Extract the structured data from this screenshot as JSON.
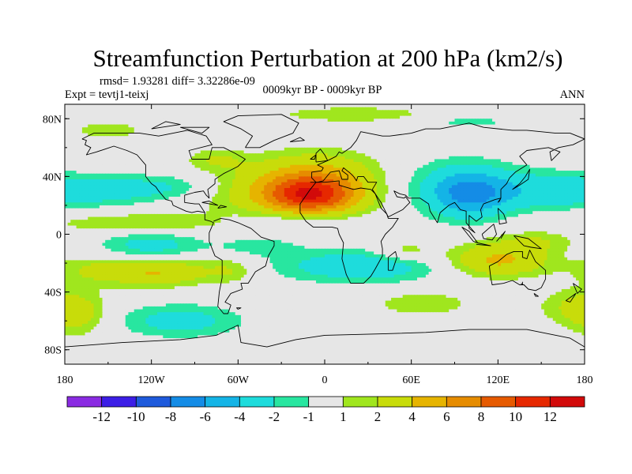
{
  "chart_data": {
    "type": "filled-contour-map",
    "title": "Streamfunction Perturbation at 200 hPa (km2/s)",
    "stats_label": "rmsd= 1.93281 diff= 3.32286e-09",
    "experiment_label": "Expt = tevtj1-teixj",
    "period_label": "0009kyr BP - 0009kyr BP",
    "season_label": "ANN",
    "xlim": [
      -180,
      180
    ],
    "ylim": [
      -90,
      90
    ],
    "x_ticks": [
      {
        "value": -180,
        "label": "180"
      },
      {
        "value": -120,
        "label": "120W"
      },
      {
        "value": -60,
        "label": "60W"
      },
      {
        "value": 0,
        "label": "0"
      },
      {
        "value": 60,
        "label": "60E"
      },
      {
        "value": 120,
        "label": "120E"
      },
      {
        "value": 180,
        "label": "180"
      }
    ],
    "y_ticks": [
      {
        "value": 80,
        "label": "80N"
      },
      {
        "value": 40,
        "label": "40N"
      },
      {
        "value": 0,
        "label": "0"
      },
      {
        "value": -40,
        "label": "40S"
      },
      {
        "value": -80,
        "label": "80S"
      }
    ],
    "levels": [
      -12,
      -10,
      -8,
      -6,
      -4,
      -2,
      -1,
      1,
      2,
      4,
      6,
      8,
      10,
      12
    ],
    "level_labels": [
      "-12",
      "-10",
      "-8",
      "-6",
      "-4",
      "-2",
      "-1",
      "1",
      "2",
      "4",
      "6",
      "8",
      "10",
      "12"
    ],
    "colors": [
      "#8a2be2",
      "#3c1ee6",
      "#1e5adc",
      "#148ce6",
      "#14b4e6",
      "#1edcdc",
      "#28e6a0",
      "#e6e6e6",
      "#a0e61e",
      "#c8dc0a",
      "#e6b400",
      "#e68c00",
      "#e65a00",
      "#e62800",
      "#d20a0a"
    ],
    "anomalies": [
      {
        "lon": -10,
        "lat": 27,
        "amp": 9.0,
        "slon": 22,
        "slat": 9
      },
      {
        "lon": -5,
        "lat": 45,
        "amp": 2.5,
        "slon": 30,
        "slat": 10
      },
      {
        "lon": -15,
        "lat": 30,
        "amp": 3.5,
        "slon": 50,
        "slat": 13
      },
      {
        "lon": 100,
        "lat": 28,
        "amp": -5.0,
        "slon": 18,
        "slat": 11
      },
      {
        "lon": 85,
        "lat": 32,
        "amp": -2.5,
        "slon": 40,
        "slat": 14
      },
      {
        "lon": 150,
        "lat": 30,
        "amp": -2.2,
        "slon": 30,
        "slat": 9
      },
      {
        "lon": -155,
        "lat": 30,
        "amp": -2.5,
        "slon": 35,
        "slat": 8
      },
      {
        "lon": -105,
        "lat": 33,
        "amp": -1.8,
        "slon": 25,
        "slat": 6
      },
      {
        "lon": -75,
        "lat": 52,
        "amp": 1.8,
        "slon": 14,
        "slat": 5
      },
      {
        "lon": -130,
        "lat": 8,
        "amp": 2.0,
        "slon": 45,
        "slat": 5
      },
      {
        "lon": -20,
        "lat": 10,
        "amp": -1.6,
        "slon": 30,
        "slat": 5
      },
      {
        "lon": 20,
        "lat": 83,
        "amp": 1.8,
        "slon": 40,
        "slat": 4
      },
      {
        "lon": 100,
        "lat": 78,
        "amp": -1.4,
        "slon": 25,
        "slat": 3
      },
      {
        "lon": -150,
        "lat": 72,
        "amp": 1.5,
        "slon": 20,
        "slat": 5
      },
      {
        "lon": -120,
        "lat": -8,
        "amp": -2.8,
        "slon": 25,
        "slat": 7
      },
      {
        "lon": -45,
        "lat": -8,
        "amp": -1.5,
        "slon": 20,
        "slat": 5
      },
      {
        "lon": -115,
        "lat": -26,
        "amp": 4.0,
        "slon": 25,
        "slat": 7
      },
      {
        "lon": -160,
        "lat": -25,
        "amp": 1.8,
        "slon": 20,
        "slat": 7
      },
      {
        "lon": -65,
        "lat": -25,
        "amp": 1.8,
        "slon": 12,
        "slat": 6
      },
      {
        "lon": 25,
        "lat": -22,
        "amp": -3.5,
        "slon": 40,
        "slat": 8
      },
      {
        "lon": 55,
        "lat": -12,
        "amp": 2.0,
        "slon": 15,
        "slat": 5
      },
      {
        "lon": 120,
        "lat": -18,
        "amp": 4.5,
        "slon": 25,
        "slat": 8
      },
      {
        "lon": 145,
        "lat": -5,
        "amp": 1.8,
        "slon": 20,
        "slat": 5
      },
      {
        "lon": -100,
        "lat": -60,
        "amp": -2.8,
        "slon": 30,
        "slat": 8
      },
      {
        "lon": -172,
        "lat": -57,
        "amp": 2.2,
        "slon": 14,
        "slat": 10
      },
      {
        "lon": 68,
        "lat": -48,
        "amp": 1.8,
        "slon": 25,
        "slat": 6
      },
      {
        "lon": 175,
        "lat": -50,
        "amp": 2.0,
        "slon": 20,
        "slat": 9
      }
    ]
  },
  "coastlines": [
    [
      [
        -168,
        66
      ],
      [
        -160,
        70
      ],
      [
        -140,
        70
      ],
      [
        -128,
        70
      ],
      [
        -115,
        68
      ],
      [
        -95,
        72
      ],
      [
        -82,
        68
      ],
      [
        -78,
        62
      ],
      [
        -94,
        58
      ],
      [
        -92,
        52
      ],
      [
        -80,
        52
      ],
      [
        -78,
        60
      ],
      [
        -70,
        60
      ],
      [
        -62,
        56
      ],
      [
        -55,
        52
      ],
      [
        -60,
        47
      ],
      [
        -66,
        44
      ],
      [
        -70,
        42
      ],
      [
        -76,
        38
      ],
      [
        -76,
        35
      ],
      [
        -81,
        31
      ],
      [
        -80,
        25
      ],
      [
        -82,
        27
      ],
      [
        -84,
        30
      ],
      [
        -90,
        29
      ],
      [
        -97,
        27
      ],
      [
        -97,
        22
      ],
      [
        -90,
        21
      ],
      [
        -87,
        21
      ],
      [
        -83,
        15
      ],
      [
        -83,
        10
      ],
      [
        -79,
        9
      ],
      [
        -77,
        8
      ],
      [
        -80,
        1
      ],
      [
        -80,
        -5
      ],
      [
        -76,
        -15
      ],
      [
        -71,
        -18
      ],
      [
        -71,
        -30
      ],
      [
        -73,
        -40
      ],
      [
        -74,
        -50
      ],
      [
        -70,
        -55
      ],
      [
        -67,
        -55
      ],
      [
        -65,
        -49
      ],
      [
        -69,
        -47
      ],
      [
        -65,
        -41
      ],
      [
        -57,
        -38
      ],
      [
        -58,
        -34
      ],
      [
        -53,
        -34
      ],
      [
        -48,
        -26
      ],
      [
        -41,
        -22
      ],
      [
        -39,
        -15
      ],
      [
        -35,
        -8
      ],
      [
        -35,
        -5
      ],
      [
        -44,
        -2
      ],
      [
        -51,
        4
      ],
      [
        -60,
        8
      ],
      [
        -66,
        10
      ],
      [
        -72,
        11
      ],
      [
        -77,
        9
      ]
    ],
    [
      [
        -83,
        15
      ],
      [
        -88,
        16
      ],
      [
        -92,
        15
      ],
      [
        -96,
        16
      ],
      [
        -105,
        20
      ],
      [
        -106,
        23
      ],
      [
        -110,
        24
      ],
      [
        -115,
        30
      ],
      [
        -117,
        33
      ],
      [
        -120,
        35
      ],
      [
        -124,
        40
      ],
      [
        -124,
        48
      ],
      [
        -130,
        55
      ],
      [
        -137,
        58
      ],
      [
        -146,
        61
      ],
      [
        -152,
        59
      ],
      [
        -158,
        57
      ],
      [
        -165,
        55
      ],
      [
        -162,
        60
      ],
      [
        -166,
        62
      ],
      [
        -165,
        65
      ],
      [
        -168,
        66
      ]
    ],
    [
      [
        -55,
        60
      ],
      [
        -45,
        60
      ],
      [
        -35,
        65
      ],
      [
        -22,
        70
      ],
      [
        -18,
        77
      ],
      [
        -30,
        83
      ],
      [
        -60,
        82
      ],
      [
        -70,
        78
      ],
      [
        -58,
        73
      ],
      [
        -50,
        68
      ],
      [
        -55,
        60
      ]
    ],
    [
      [
        -10,
        36
      ],
      [
        -6,
        36
      ],
      [
        -9,
        39
      ],
      [
        -9,
        43
      ],
      [
        -2,
        44
      ],
      [
        -1,
        46
      ],
      [
        -5,
        48
      ],
      [
        2,
        51
      ],
      [
        8,
        54
      ],
      [
        10,
        57
      ],
      [
        12,
        56
      ],
      [
        18,
        60
      ],
      [
        22,
        65
      ],
      [
        25,
        71
      ],
      [
        40,
        68
      ],
      [
        45,
        68
      ],
      [
        60,
        70
      ],
      [
        70,
        73
      ],
      [
        80,
        73
      ],
      [
        100,
        77
      ],
      [
        110,
        74
      ],
      [
        130,
        72
      ],
      [
        140,
        72
      ],
      [
        160,
        70
      ],
      [
        170,
        70
      ],
      [
        180,
        66
      ],
      [
        172,
        62
      ],
      [
        162,
        60
      ],
      [
        156,
        57
      ],
      [
        157,
        51
      ],
      [
        163,
        57
      ],
      [
        155,
        60
      ],
      [
        140,
        58
      ],
      [
        135,
        54
      ],
      [
        140,
        48
      ],
      [
        132,
        43
      ],
      [
        128,
        39
      ],
      [
        126,
        35
      ],
      [
        122,
        31
      ],
      [
        122,
        25
      ],
      [
        118,
        24
      ],
      [
        110,
        21
      ],
      [
        108,
        17
      ],
      [
        109,
        12
      ],
      [
        105,
        9
      ],
      [
        100,
        13
      ],
      [
        100,
        4
      ],
      [
        104,
        1
      ],
      [
        98,
        8
      ],
      [
        98,
        16
      ],
      [
        94,
        17
      ],
      [
        90,
        22
      ],
      [
        86,
        20
      ],
      [
        80,
        15
      ],
      [
        78,
        8
      ],
      [
        73,
        16
      ],
      [
        72,
        21
      ],
      [
        66,
        25
      ],
      [
        58,
        25
      ],
      [
        56,
        27
      ],
      [
        52,
        28
      ],
      [
        48,
        30
      ],
      [
        50,
        26
      ],
      [
        55,
        25
      ],
      [
        56,
        26
      ],
      [
        59,
        22
      ],
      [
        54,
        17
      ],
      [
        44,
        12
      ],
      [
        43,
        14
      ],
      [
        39,
        22
      ],
      [
        35,
        28
      ],
      [
        33,
        31
      ],
      [
        36,
        36
      ],
      [
        30,
        36
      ],
      [
        27,
        40
      ],
      [
        23,
        40
      ],
      [
        22,
        37
      ],
      [
        20,
        40
      ],
      [
        18,
        42
      ],
      [
        13,
        46
      ],
      [
        12,
        44
      ],
      [
        16,
        41
      ],
      [
        16,
        38
      ],
      [
        12,
        38
      ],
      [
        10,
        44
      ],
      [
        4,
        43
      ],
      [
        -1,
        37
      ],
      [
        -5,
        36
      ],
      [
        -10,
        36
      ]
    ],
    [
      [
        -6,
        36
      ],
      [
        -10,
        31
      ],
      [
        -17,
        21
      ],
      [
        -17,
        15
      ],
      [
        -13,
        9
      ],
      [
        -8,
        5
      ],
      [
        -2,
        5
      ],
      [
        5,
        5
      ],
      [
        9,
        4
      ],
      [
        10,
        0
      ],
      [
        13,
        -6
      ],
      [
        12,
        -17
      ],
      [
        15,
        -28
      ],
      [
        18,
        -34
      ],
      [
        22,
        -34
      ],
      [
        27,
        -34
      ],
      [
        32,
        -29
      ],
      [
        35,
        -24
      ],
      [
        40,
        -15
      ],
      [
        40,
        -10
      ],
      [
        39,
        -5
      ],
      [
        42,
        0
      ],
      [
        47,
        5
      ],
      [
        51,
        11
      ],
      [
        44,
        11
      ],
      [
        43,
        14
      ],
      [
        39,
        18
      ],
      [
        35,
        28
      ],
      [
        32,
        31
      ],
      [
        25,
        32
      ],
      [
        20,
        31
      ],
      [
        10,
        34
      ],
      [
        10,
        37
      ],
      [
        0,
        36
      ],
      [
        -6,
        36
      ]
    ],
    [
      [
        114,
        -22
      ],
      [
        120,
        -19
      ],
      [
        126,
        -14
      ],
      [
        131,
        -12
      ],
      [
        137,
        -12
      ],
      [
        137,
        -16
      ],
      [
        140,
        -17
      ],
      [
        142,
        -11
      ],
      [
        146,
        -19
      ],
      [
        153,
        -25
      ],
      [
        153,
        -31
      ],
      [
        150,
        -37
      ],
      [
        146,
        -39
      ],
      [
        141,
        -38
      ],
      [
        138,
        -35
      ],
      [
        135,
        -35
      ],
      [
        130,
        -32
      ],
      [
        124,
        -34
      ],
      [
        116,
        -35
      ],
      [
        115,
        -30
      ],
      [
        114,
        -22
      ]
    ],
    [
      [
        -180,
        -78
      ],
      [
        -140,
        -75
      ],
      [
        -100,
        -73
      ],
      [
        -75,
        -70
      ],
      [
        -60,
        -63
      ],
      [
        -58,
        -75
      ],
      [
        -40,
        -78
      ],
      [
        -20,
        -73
      ],
      [
        0,
        -70
      ],
      [
        40,
        -69
      ],
      [
        70,
        -68
      ],
      [
        100,
        -66
      ],
      [
        140,
        -66
      ],
      [
        170,
        -72
      ],
      [
        180,
        -78
      ]
    ],
    [
      [
        44,
        -25
      ],
      [
        47,
        -25
      ],
      [
        50,
        -16
      ],
      [
        49,
        -12
      ],
      [
        44,
        -16
      ],
      [
        44,
        -25
      ]
    ],
    [
      [
        95,
        5
      ],
      [
        100,
        2
      ],
      [
        106,
        -6
      ],
      [
        103,
        -5
      ],
      [
        95,
        5
      ]
    ],
    [
      [
        105,
        -7
      ],
      [
        115,
        -8
      ],
      [
        106,
        -6
      ]
    ],
    [
      [
        109,
        0
      ],
      [
        117,
        7
      ],
      [
        119,
        0
      ],
      [
        116,
        -4
      ],
      [
        110,
        -3
      ],
      [
        109,
        0
      ]
    ],
    [
      [
        119,
        -5
      ],
      [
        125,
        2
      ],
      [
        122,
        -3
      ]
    ],
    [
      [
        131,
        -1
      ],
      [
        141,
        -3
      ],
      [
        150,
        -10
      ],
      [
        143,
        -9
      ],
      [
        138,
        -8
      ],
      [
        131,
        -1
      ]
    ],
    [
      [
        130,
        31
      ],
      [
        135,
        34
      ],
      [
        141,
        38
      ],
      [
        142,
        45
      ],
      [
        139,
        40
      ],
      [
        135,
        35
      ],
      [
        130,
        31
      ]
    ],
    [
      [
        -6,
        50
      ],
      [
        2,
        51
      ],
      [
        0,
        55
      ],
      [
        -3,
        59
      ],
      [
        -6,
        56
      ],
      [
        -6,
        50
      ]
    ],
    [
      [
        -10,
        52
      ],
      [
        -6,
        55
      ],
      [
        -7,
        52
      ],
      [
        -10,
        52
      ]
    ],
    [
      [
        -24,
        64
      ],
      [
        -14,
        65
      ],
      [
        -17,
        67
      ],
      [
        -24,
        64
      ]
    ],
    [
      [
        120,
        22
      ],
      [
        122,
        25
      ],
      [
        121,
        23
      ],
      [
        120,
        22
      ]
    ],
    [
      [
        120,
        18
      ],
      [
        124,
        14
      ],
      [
        126,
        8
      ],
      [
        121,
        7
      ],
      [
        120,
        18
      ]
    ],
    [
      [
        172,
        -34
      ],
      [
        178,
        -38
      ],
      [
        175,
        -41
      ],
      [
        172,
        -34
      ]
    ],
    [
      [
        167,
        -46
      ],
      [
        174,
        -41
      ],
      [
        170,
        -47
      ],
      [
        167,
        -46
      ]
    ],
    [
      [
        -85,
        22
      ],
      [
        -74,
        20
      ],
      [
        -80,
        23
      ],
      [
        -85,
        22
      ]
    ],
    [
      [
        -74,
        18
      ],
      [
        -68,
        19
      ],
      [
        -72,
        20
      ],
      [
        -74,
        18
      ]
    ],
    [
      [
        145,
        -41
      ],
      [
        148,
        -43
      ],
      [
        146,
        -43
      ],
      [
        145,
        -41
      ]
    ],
    [
      [
        -100,
        74
      ],
      [
        -80,
        74
      ],
      [
        -85,
        70
      ],
      [
        -100,
        74
      ]
    ],
    [
      [
        -120,
        73
      ],
      [
        -100,
        76
      ],
      [
        -110,
        78
      ],
      [
        -120,
        73
      ]
    ],
    [
      [
        -60,
        -52
      ],
      [
        -58,
        -51
      ],
      [
        -61,
        -51
      ],
      [
        -60,
        -52
      ]
    ],
    [
      [
        137,
        -33
      ],
      [
        137,
        -35
      ],
      [
        136,
        -34
      ]
    ]
  ]
}
